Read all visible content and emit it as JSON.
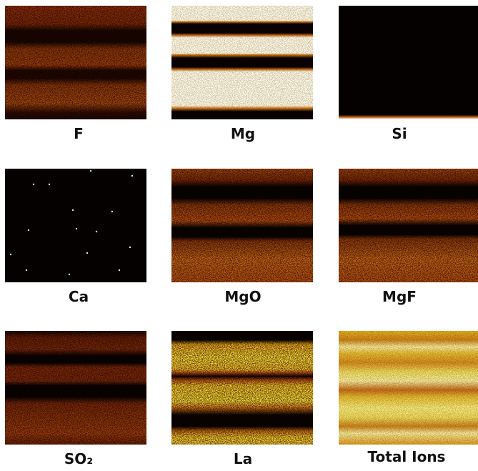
{
  "panels": [
    {
      "label": "F"
    },
    {
      "label": "Mg"
    },
    {
      "label": "Si"
    },
    {
      "label": "Ca"
    },
    {
      "label": "MgO"
    },
    {
      "label": "MgF"
    },
    {
      "label": "SO₂"
    },
    {
      "label": "La"
    },
    {
      "label": "Total Ions"
    }
  ]
}
